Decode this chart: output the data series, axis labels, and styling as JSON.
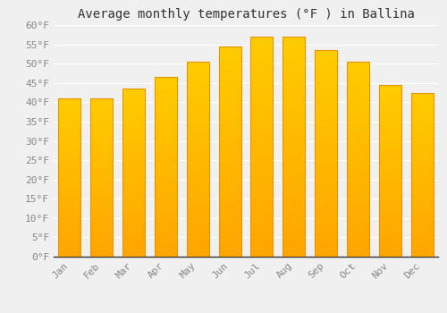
{
  "title": "Average monthly temperatures (°F ) in Ballina",
  "months": [
    "Jan",
    "Feb",
    "Mar",
    "Apr",
    "May",
    "Jun",
    "Jul",
    "Aug",
    "Sep",
    "Oct",
    "Nov",
    "Dec"
  ],
  "values": [
    41,
    41,
    43.5,
    46.5,
    50.5,
    54.5,
    57,
    57,
    53.5,
    50.5,
    44.5,
    42.5
  ],
  "bar_color_main": "#FFB300",
  "bar_color_light": "#FFD54F",
  "bar_color_bottom": "#FFA000",
  "bar_edge_color": "#E69500",
  "ylim": [
    0,
    60
  ],
  "ytick_step": 5,
  "background_color": "#f0f0f0",
  "grid_color": "#ffffff",
  "title_fontsize": 10,
  "tick_fontsize": 8,
  "tick_color": "#888888",
  "title_color": "#333333"
}
